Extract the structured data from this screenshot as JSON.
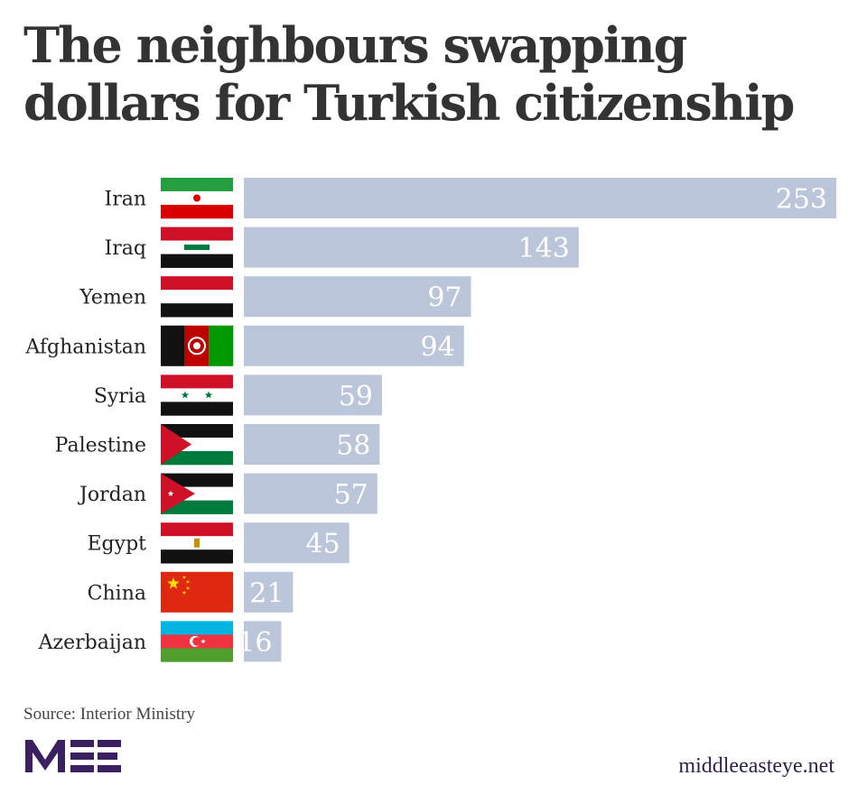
{
  "title": "The neighbours swapping dollars for Turkish citizenship",
  "source": "Source: Interior Ministry",
  "site": "middleeasteye.net",
  "logo_text": "MEE",
  "colors": {
    "bar": "#bcc6da",
    "bar_label": "#ffffff",
    "category_text": "#222222",
    "logo": "#3b2060"
  },
  "chart_data": {
    "type": "bar",
    "orientation": "horizontal",
    "title": "The neighbours swapping dollars for Turkish citizenship",
    "categories": [
      "Iran",
      "Iraq",
      "Yemen",
      "Afghanistan",
      "Syria",
      "Palestine",
      "Jordan",
      "Egypt",
      "China",
      "Azerbaijan"
    ],
    "values": [
      253,
      143,
      97,
      94,
      59,
      58,
      57,
      45,
      21,
      16
    ],
    "flags": [
      "iran-flag",
      "iraq-flag",
      "yemen-flag",
      "afghanistan-flag",
      "syria-flag",
      "palestine-flag",
      "jordan-flag",
      "egypt-flag",
      "china-flag",
      "azerbaijan-flag"
    ],
    "xlim": [
      0,
      253
    ],
    "grid": false,
    "legend": "none"
  }
}
